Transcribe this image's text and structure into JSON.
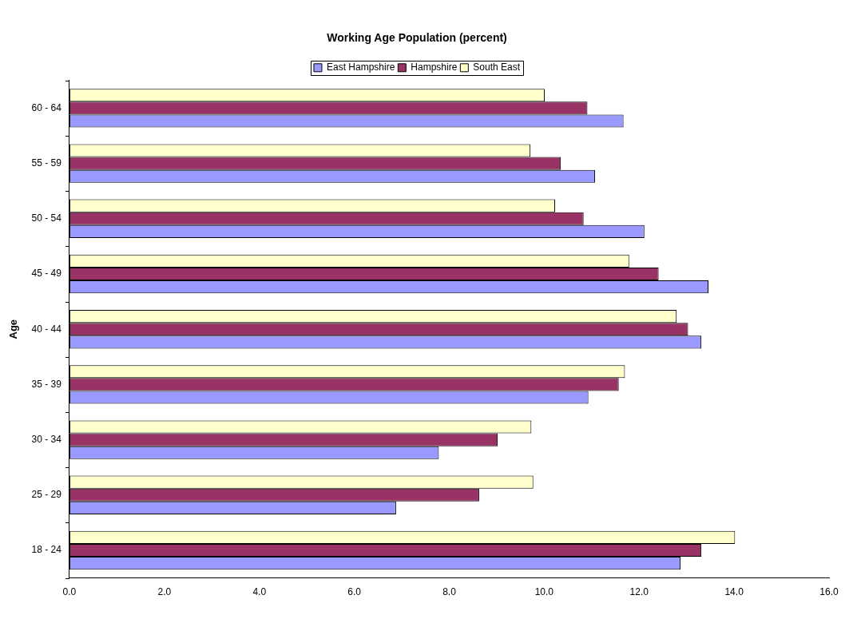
{
  "chart_data": {
    "type": "bar",
    "orientation": "horizontal",
    "title": "Working Age Population (percent)",
    "ylabel": "Age",
    "categories": [
      "60 - 64",
      "55 - 59",
      "50 - 54",
      "45 - 49",
      "40 - 44",
      "35 - 39",
      "30 - 34",
      "25 - 29",
      "18 - 24"
    ],
    "series": [
      {
        "name": "East Hampshire",
        "color": "#9999ff",
        "values": [
          11.67,
          11.07,
          12.11,
          13.46,
          13.31,
          10.93,
          7.78,
          6.88,
          12.87
        ]
      },
      {
        "name": "Hampshire",
        "color": "#993366",
        "values": [
          10.91,
          10.35,
          10.83,
          12.41,
          13.03,
          11.57,
          9.02,
          8.63,
          13.31
        ]
      },
      {
        "name": "South East",
        "color": "#ffffcc",
        "values": [
          10.01,
          9.71,
          10.23,
          11.79,
          12.79,
          11.7,
          9.73,
          9.77,
          14.02
        ]
      }
    ],
    "xlim": [
      0,
      16
    ],
    "xticks": [
      {
        "value": 0,
        "label": "0.0"
      },
      {
        "value": 2,
        "label": "2.0"
      },
      {
        "value": 4,
        "label": "4.0"
      },
      {
        "value": 6,
        "label": "6.0"
      },
      {
        "value": 8,
        "label": "8.0"
      },
      {
        "value": 10,
        "label": "10.0"
      },
      {
        "value": 12,
        "label": "12.0"
      },
      {
        "value": 14,
        "label": "14.0"
      },
      {
        "value": 16,
        "label": "16.0"
      }
    ],
    "grid": false,
    "legend": "top"
  }
}
